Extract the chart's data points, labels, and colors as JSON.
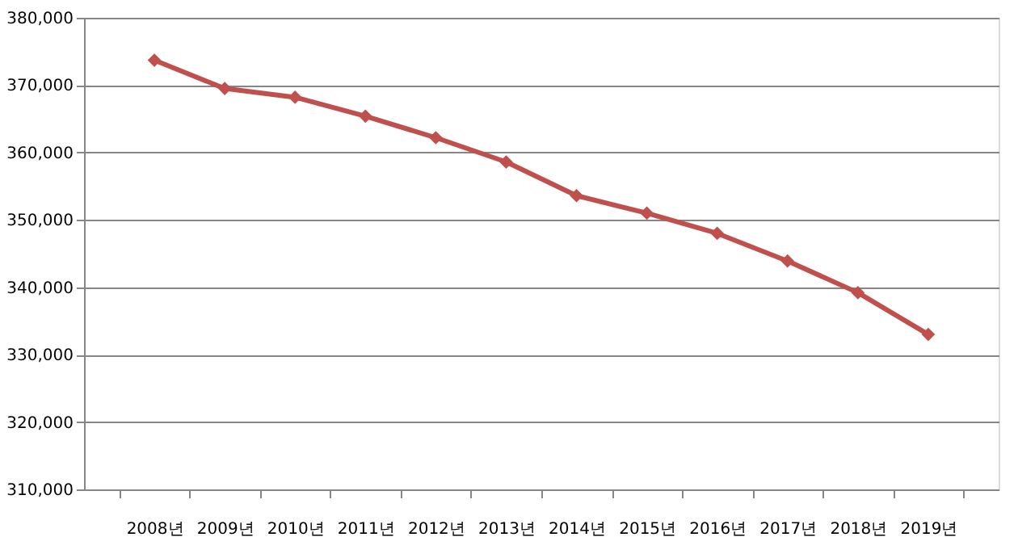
{
  "chart_data": {
    "type": "line",
    "categories": [
      "2008년",
      "2009년",
      "2010년",
      "2011년",
      "2012년",
      "2013년",
      "2014년",
      "2015년",
      "2016년",
      "2017년",
      "2018년",
      "2019년"
    ],
    "series": [
      {
        "color": "#c0504d",
        "values": [
          373700,
          369500,
          368200,
          365400,
          362200,
          358600,
          353600,
          351000,
          348000,
          343900,
          339200,
          333000
        ]
      }
    ],
    "ylim": [
      310000,
      380000
    ],
    "yticks": [
      {
        "value": 310000,
        "label": "310,000"
      },
      {
        "value": 320000,
        "label": "320,000"
      },
      {
        "value": 330000,
        "label": "330,000"
      },
      {
        "value": 340000,
        "label": "340,000"
      },
      {
        "value": 350000,
        "label": "350,000"
      },
      {
        "value": 360000,
        "label": "360,000"
      },
      {
        "value": 370000,
        "label": "370,000"
      },
      {
        "value": 380000,
        "label": "380,000"
      }
    ],
    "grid": "y",
    "marker": "diamond",
    "line_style": "solid"
  }
}
